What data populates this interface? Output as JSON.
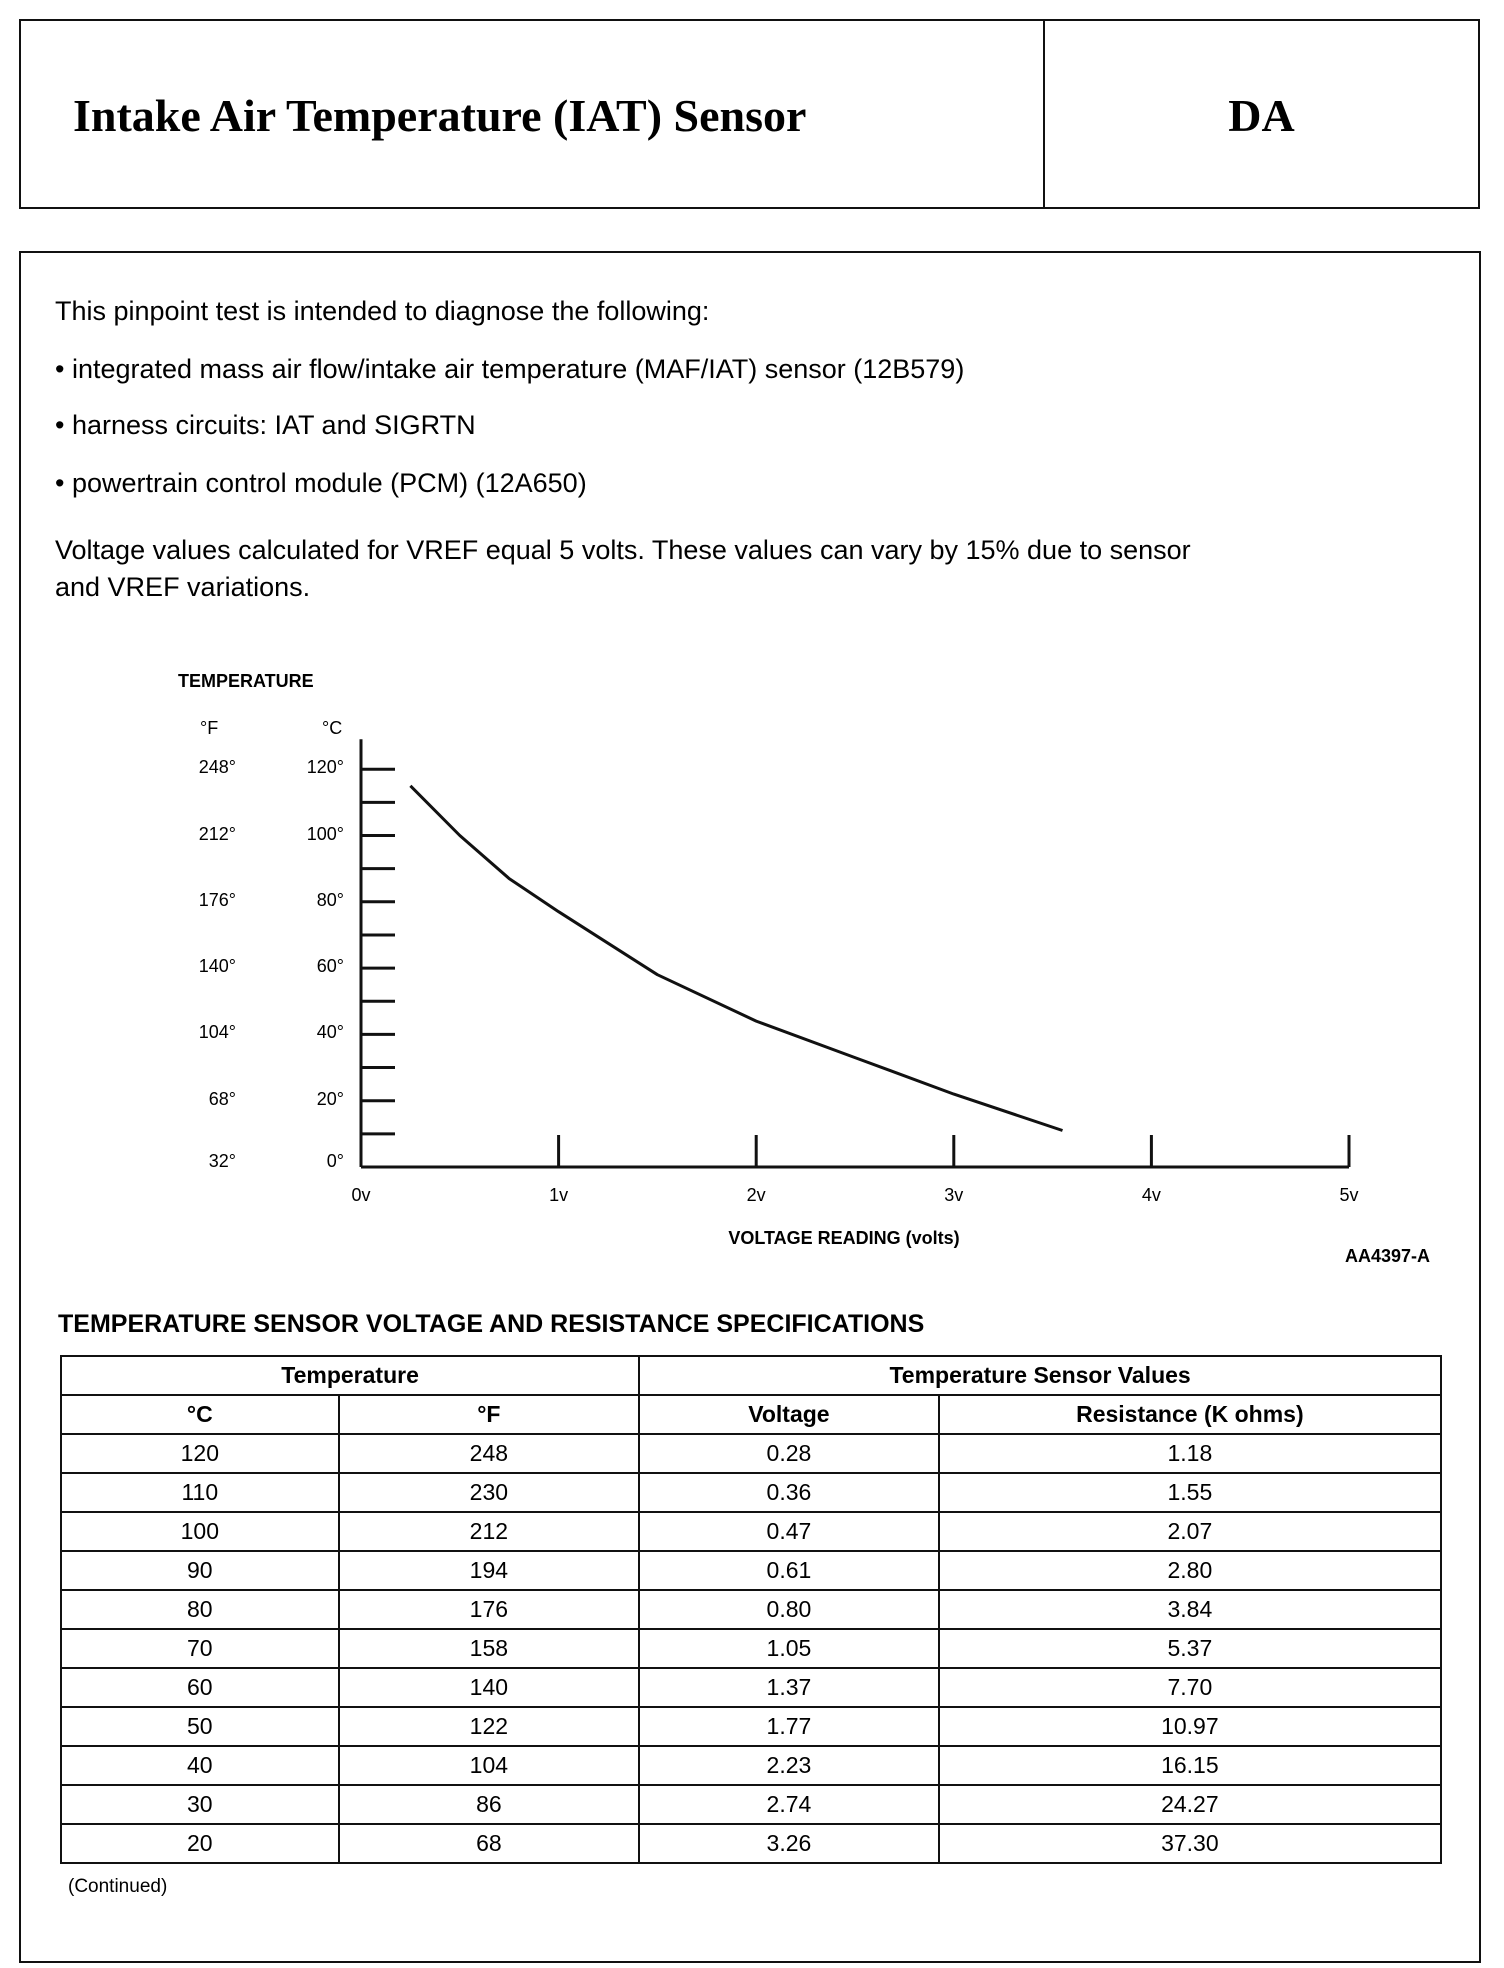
{
  "header": {
    "title": "Intake Air Temperature (IAT) Sensor",
    "code": "DA"
  },
  "intro": {
    "lead": "This pinpoint test is intended to diagnose the following:",
    "bullets": [
      "integrated mass air flow/intake air temperature (MAF/IAT) sensor (12B579)",
      "harness circuits: IAT and SIGRTN",
      "powertrain control module (PCM) (12A650)"
    ],
    "note_line1": "Voltage values calculated for VREF equal 5 volts. These values can vary by 15% due to sensor",
    "note_line2": "and VREF variations."
  },
  "chart_data": {
    "type": "line",
    "title": "TEMPERATURE",
    "xlabel": "VOLTAGE READING (volts)",
    "y_units": {
      "f": "°F",
      "c": "°C"
    },
    "xlim": [
      0,
      5
    ],
    "ylim": [
      0,
      120
    ],
    "x_ticks": [
      "0v",
      "1v",
      "2v",
      "3v",
      "4v",
      "5v"
    ],
    "y_ticks_c": [
      "120°",
      "100°",
      "80°",
      "60°",
      "40°",
      "20°",
      "0°"
    ],
    "y_ticks_f": [
      "248°",
      "212°",
      "176°",
      "140°",
      "104°",
      "68°",
      "32°"
    ],
    "grid": false,
    "series": [
      {
        "x": [
          0.25,
          0.5,
          0.75,
          1.0,
          1.5,
          2.0,
          2.5,
          3.0,
          3.55
        ],
        "y": [
          115,
          100,
          87,
          77,
          58,
          44,
          33,
          22,
          11
        ]
      }
    ],
    "figure_id": "AA4397-A"
  },
  "table": {
    "title": "TEMPERATURE SENSOR VOLTAGE AND RESISTANCE SPECIFICATIONS",
    "group_headers": [
      "Temperature",
      "Temperature Sensor Values"
    ],
    "columns": [
      "°C",
      "°F",
      "Voltage",
      "Resistance (K ohms)"
    ],
    "rows": [
      [
        "120",
        "248",
        "0.28",
        "1.18"
      ],
      [
        "110",
        "230",
        "0.36",
        "1.55"
      ],
      [
        "100",
        "212",
        "0.47",
        "2.07"
      ],
      [
        "90",
        "194",
        "0.61",
        "2.80"
      ],
      [
        "80",
        "176",
        "0.80",
        "3.84"
      ],
      [
        "70",
        "158",
        "1.05",
        "5.37"
      ],
      [
        "60",
        "140",
        "1.37",
        "7.70"
      ],
      [
        "50",
        "122",
        "1.77",
        "10.97"
      ],
      [
        "40",
        "104",
        "2.23",
        "16.15"
      ],
      [
        "30",
        "86",
        "2.74",
        "24.27"
      ],
      [
        "20",
        "68",
        "3.26",
        "37.30"
      ]
    ],
    "footnote": "(Continued)"
  }
}
